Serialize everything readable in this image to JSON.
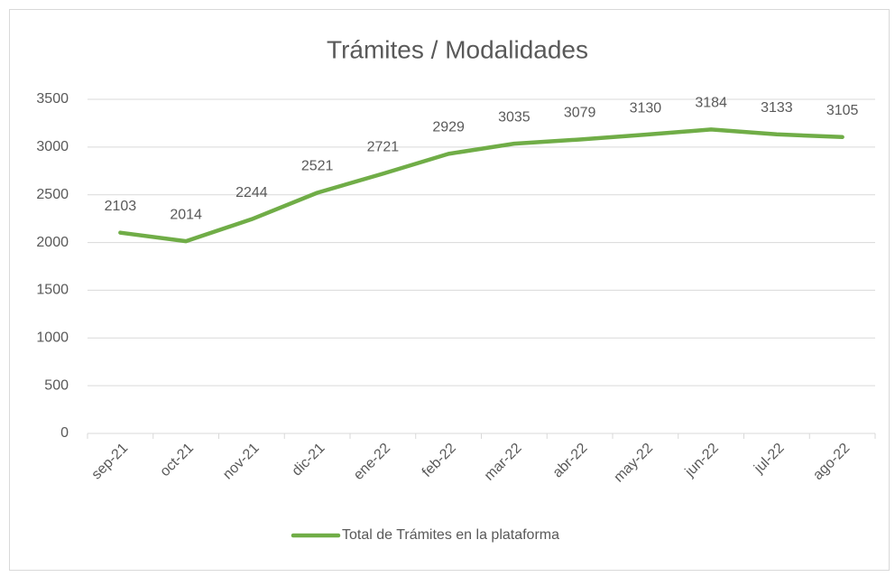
{
  "chart_data": {
    "type": "line",
    "title": "Trámites / Modalidades",
    "categories": [
      "sep-21",
      "oct-21",
      "nov-21",
      "dic-21",
      "ene-22",
      "feb-22",
      "mar-22",
      "abr-22",
      "may-22",
      "jun-22",
      "jul-22",
      "ago-22"
    ],
    "series": [
      {
        "name": "Total de Trámites en la plataforma",
        "color": "#70ad47",
        "values": [
          2103,
          2014,
          2244,
          2521,
          2721,
          2929,
          3035,
          3079,
          3130,
          3184,
          3133,
          3105
        ]
      }
    ],
    "ylim": [
      0,
      3500
    ],
    "yticks": [
      0,
      500,
      1000,
      1500,
      2000,
      2500,
      3000,
      3500
    ],
    "grid": true,
    "data_labels": true,
    "legend": "bottom"
  }
}
